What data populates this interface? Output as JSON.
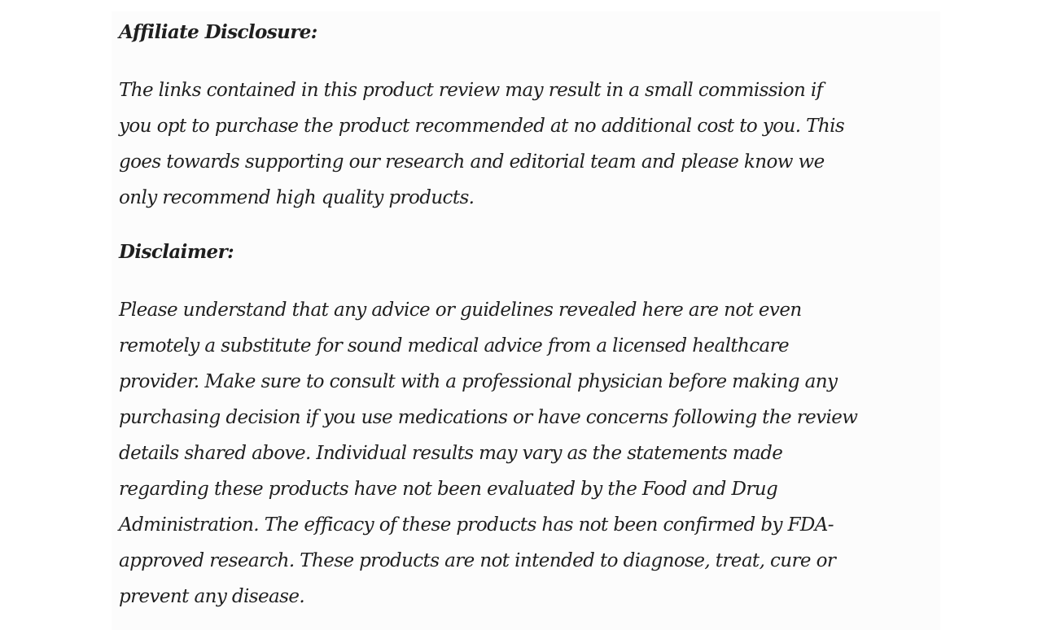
{
  "sections": [
    {
      "heading": "Affiliate Disclosure:",
      "lines": [
        "The links contained in this product review may result in a small commission if",
        "you opt to purchase the product recommended at no additional cost to you. This",
        "goes towards supporting our research and editorial team and please know we",
        "only recommend high quality products."
      ]
    },
    {
      "heading": "Disclaimer:",
      "lines": [
        "Please understand that any advice or guidelines revealed here are not even",
        "remotely a substitute for sound medical advice from a licensed healthcare",
        "provider. Make sure to consult with a professional physician before making any",
        "purchasing decision if you use medications or have concerns following the review",
        "details shared above. Individual results may vary as the statements made",
        "regarding these products have not been evaluated by the Food and Drug",
        "Administration. The efficacy of these products has not been confirmed by FDA-",
        "approved research. These products are not intended to diagnose, treat, cure or",
        "prevent any disease."
      ]
    }
  ]
}
